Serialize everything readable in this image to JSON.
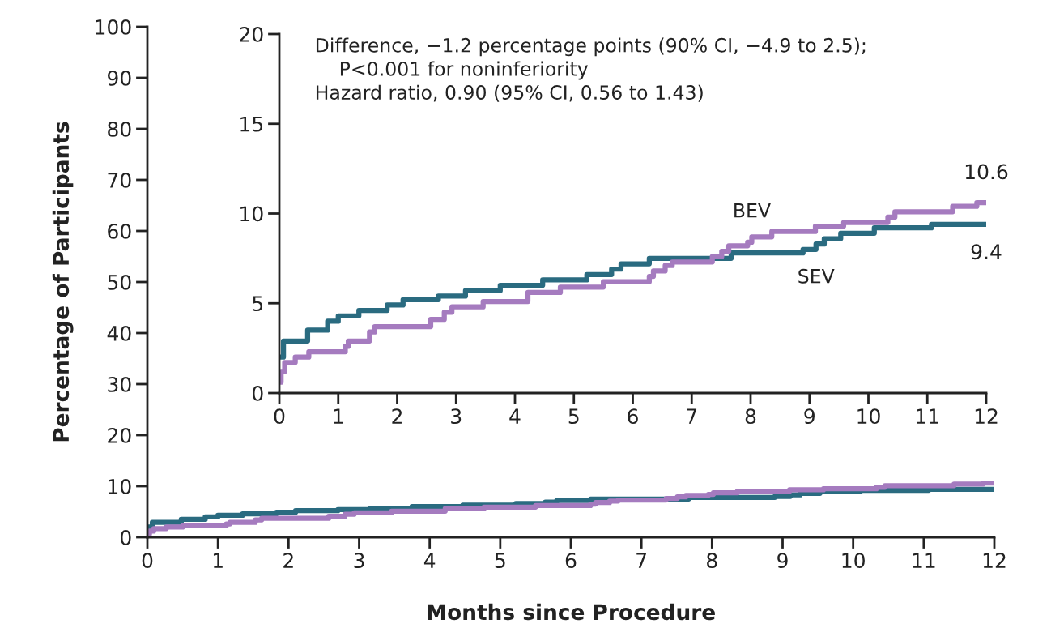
{
  "chart_data": [
    {
      "type": "step",
      "xlabel": "Months since Procedure",
      "ylabel": "Percentage of Participants",
      "xlim": [
        0,
        12
      ],
      "xticks": [
        0,
        1,
        2,
        3,
        4,
        5,
        6,
        7,
        8,
        9,
        10,
        11,
        12
      ],
      "ylim": [
        0,
        100
      ],
      "yticks": [
        0,
        10,
        20,
        30,
        40,
        50,
        60,
        70,
        80,
        90,
        100
      ],
      "grid": false,
      "legend": false,
      "line_style": "solid",
      "series": [
        {
          "color": "#2a6b80",
          "x": [
            0,
            0.07,
            0.48,
            0.82,
            1.0,
            1.35,
            1.83,
            2.1,
            2.7,
            3.16,
            3.75,
            4.47,
            5.22,
            5.64,
            5.8,
            6.28,
            7.67,
            8.89,
            9.11,
            9.25,
            9.53,
            10.1,
            11.07,
            12
          ],
          "values": [
            2.0,
            2.9,
            3.5,
            4.0,
            4.3,
            4.6,
            4.9,
            5.2,
            5.4,
            5.7,
            6.0,
            6.3,
            6.6,
            6.9,
            7.2,
            7.5,
            7.8,
            8.0,
            8.3,
            8.6,
            8.9,
            9.2,
            9.4,
            9.4
          ]
        },
        {
          "color": "#a57bbf",
          "x": [
            0,
            0.03,
            0.09,
            0.27,
            0.5,
            1.12,
            1.17,
            1.53,
            1.62,
            2.57,
            2.8,
            2.93,
            3.46,
            4.22,
            4.77,
            5.5,
            6.28,
            6.35,
            6.55,
            6.67,
            7.35,
            7.51,
            7.63,
            7.95,
            8.02,
            8.36,
            9.1,
            9.58,
            10.33,
            10.45,
            11.43,
            11.84,
            12
          ],
          "values": [
            0.6,
            1.2,
            1.7,
            2.0,
            2.3,
            2.6,
            2.9,
            3.4,
            3.7,
            4.1,
            4.5,
            4.8,
            5.1,
            5.6,
            5.9,
            6.2,
            6.5,
            6.8,
            7.1,
            7.3,
            7.6,
            7.9,
            8.2,
            8.4,
            8.7,
            9.0,
            9.3,
            9.5,
            9.8,
            10.1,
            10.4,
            10.6,
            10.6
          ]
        }
      ]
    },
    {
      "type": "step",
      "xlim": [
        0,
        12
      ],
      "xticks": [
        0,
        1,
        2,
        3,
        4,
        5,
        6,
        7,
        8,
        9,
        10,
        11,
        12
      ],
      "ylim": [
        0,
        20
      ],
      "yticks": [
        0,
        5,
        10,
        15,
        20
      ],
      "grid": false,
      "legend": false,
      "line_style": "solid",
      "annotations": [
        "Difference, −1.2 percentage points (90% CI, −4.9 to 2.5);\n    P<0.001 for noninferiority\nHazard ratio, 0.90 (95% CI, 0.56 to 1.43)",
        {
          "text": "10.6",
          "x": 12,
          "y": 10.6
        },
        {
          "text": "9.4",
          "x": 12,
          "y": 9.4
        }
      ],
      "series": [
        {
          "name": "SEV",
          "color": "#2a6b80",
          "x": [
            0,
            0.07,
            0.48,
            0.82,
            1.0,
            1.35,
            1.83,
            2.1,
            2.7,
            3.16,
            3.75,
            4.47,
            5.22,
            5.64,
            5.8,
            6.28,
            7.67,
            8.89,
            9.11,
            9.25,
            9.53,
            10.1,
            11.07,
            12
          ],
          "values": [
            2.0,
            2.9,
            3.5,
            4.0,
            4.3,
            4.6,
            4.9,
            5.2,
            5.4,
            5.7,
            6.0,
            6.3,
            6.6,
            6.9,
            7.2,
            7.5,
            7.8,
            8.0,
            8.3,
            8.6,
            8.9,
            9.2,
            9.4,
            9.4
          ]
        },
        {
          "name": "BEV",
          "color": "#a57bbf",
          "x": [
            0,
            0.03,
            0.09,
            0.27,
            0.5,
            1.12,
            1.17,
            1.53,
            1.62,
            2.57,
            2.8,
            2.93,
            3.46,
            4.22,
            4.77,
            5.5,
            6.28,
            6.35,
            6.55,
            6.67,
            7.35,
            7.51,
            7.63,
            7.95,
            8.02,
            8.36,
            9.1,
            9.58,
            10.33,
            10.45,
            11.43,
            11.84,
            12
          ],
          "values": [
            0.6,
            1.2,
            1.7,
            2.0,
            2.3,
            2.6,
            2.9,
            3.4,
            3.7,
            4.1,
            4.5,
            4.8,
            5.1,
            5.6,
            5.9,
            6.2,
            6.5,
            6.8,
            7.1,
            7.3,
            7.6,
            7.9,
            8.2,
            8.4,
            8.7,
            9.0,
            9.3,
            9.5,
            9.8,
            10.1,
            10.4,
            10.6,
            10.6
          ]
        }
      ]
    }
  ]
}
